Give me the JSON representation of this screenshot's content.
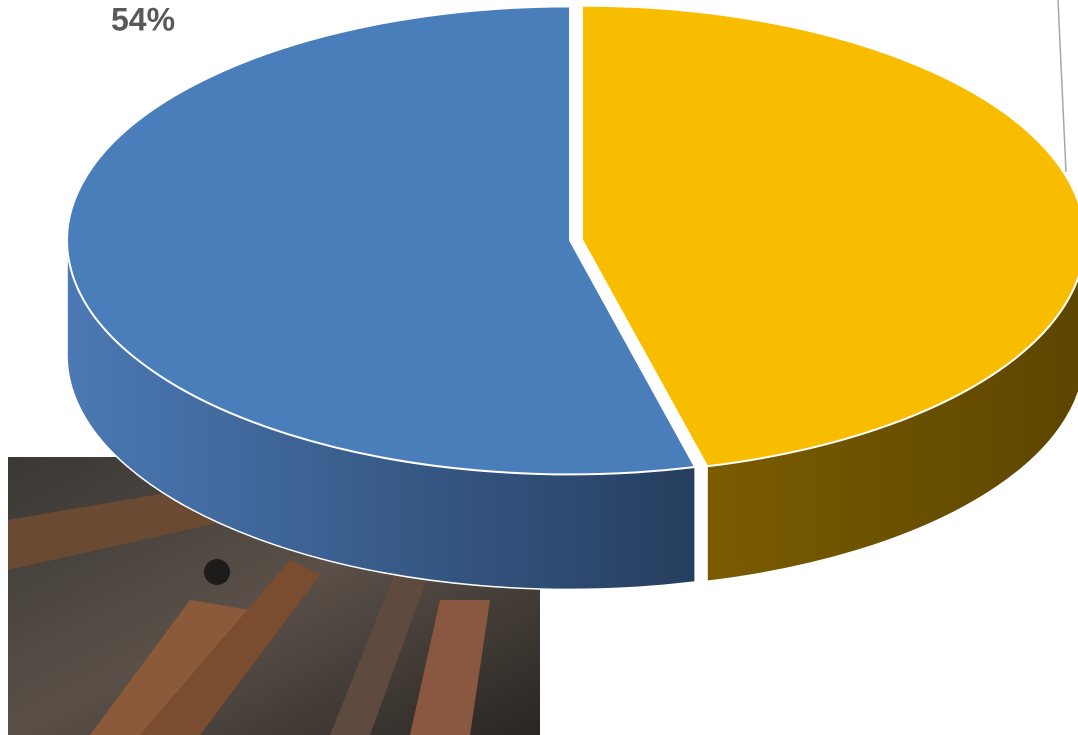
{
  "chart_data": {
    "type": "pie",
    "values": [
      54,
      46
    ],
    "value_labels": [
      "54%",
      null
    ],
    "colors": [
      "#4a7ebb",
      "#f9bd00"
    ]
  }
}
